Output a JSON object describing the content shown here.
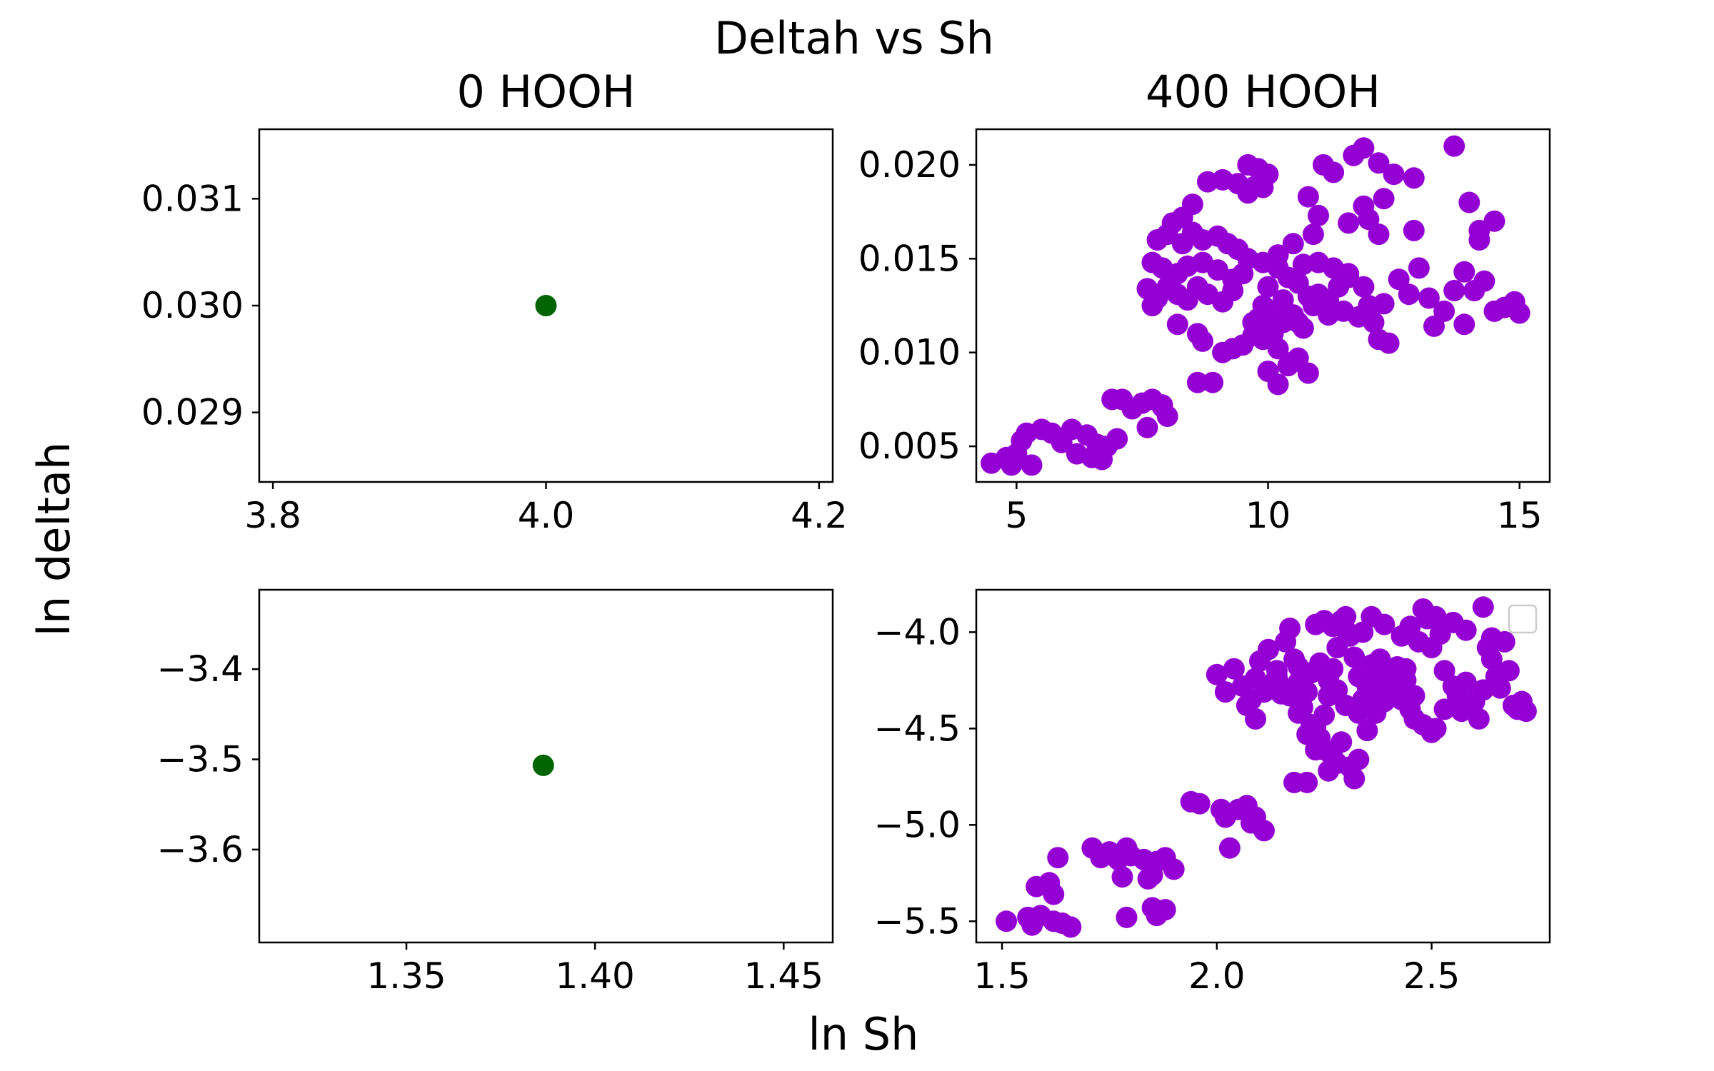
{
  "figure": {
    "suptitle": "Deltah vs Sh",
    "supxlabel": "ln Sh",
    "supylabel": "ln deltah"
  },
  "colors": {
    "control": "#006400",
    "treatment": "#9400D3",
    "axes": "#000000",
    "legend_border": "#cccccc"
  },
  "chart_data": [
    {
      "type": "scatter",
      "panel": "top-left",
      "title": "0 HOOH",
      "color": "#006400",
      "xlim": [
        3.79,
        4.21
      ],
      "ylim": [
        0.02835,
        0.03165
      ],
      "xticks": [
        3.8,
        4.0,
        4.2
      ],
      "xtick_labels": [
        "3.8",
        "4.0",
        "4.2"
      ],
      "yticks": [
        0.029,
        0.03,
        0.031
      ],
      "ytick_labels": [
        "0.029",
        "0.030",
        "0.031"
      ],
      "points": [
        [
          4.0,
          0.03
        ]
      ]
    },
    {
      "type": "scatter",
      "panel": "top-right",
      "title": "400 HOOH",
      "color": "#9400D3",
      "xlim": [
        4.2,
        15.6
      ],
      "ylim": [
        0.0031,
        0.0219
      ],
      "xticks": [
        5,
        10,
        15
      ],
      "xtick_labels": [
        "5",
        "10",
        "15"
      ],
      "yticks": [
        0.005,
        0.01,
        0.015,
        0.02
      ],
      "ytick_labels": [
        "0.005",
        "0.010",
        "0.015",
        "0.020"
      ],
      "points": [
        [
          4.5,
          0.0041
        ],
        [
          4.8,
          0.0044
        ],
        [
          5.0,
          0.0046
        ],
        [
          5.1,
          0.0053
        ],
        [
          5.2,
          0.0057
        ],
        [
          4.9,
          0.004
        ],
        [
          5.3,
          0.004
        ],
        [
          5.5,
          0.0059
        ],
        [
          5.7,
          0.0057
        ],
        [
          5.9,
          0.0052
        ],
        [
          6.1,
          0.0059
        ],
        [
          6.2,
          0.0046
        ],
        [
          6.4,
          0.0056
        ],
        [
          6.5,
          0.0044
        ],
        [
          6.6,
          0.0051
        ],
        [
          6.7,
          0.0043
        ],
        [
          6.8,
          0.005
        ],
        [
          7.0,
          0.0054
        ],
        [
          6.9,
          0.0075
        ],
        [
          7.1,
          0.0075
        ],
        [
          7.3,
          0.007
        ],
        [
          7.5,
          0.0073
        ],
        [
          7.7,
          0.0075
        ],
        [
          7.9,
          0.0071
        ],
        [
          8.0,
          0.0066
        ],
        [
          7.6,
          0.006
        ],
        [
          7.9,
          0.0072
        ],
        [
          8.6,
          0.0084
        ],
        [
          8.9,
          0.0084
        ],
        [
          9.1,
          0.01
        ],
        [
          9.3,
          0.0102
        ],
        [
          9.5,
          0.0104
        ],
        [
          9.7,
          0.0109
        ],
        [
          9.9,
          0.0107
        ],
        [
          10.1,
          0.011
        ],
        [
          10.2,
          0.0102
        ],
        [
          10.4,
          0.0093
        ],
        [
          10.6,
          0.0097
        ],
        [
          10.8,
          0.0089
        ],
        [
          10.0,
          0.009
        ],
        [
          10.2,
          0.0083
        ],
        [
          10.5,
          0.0095
        ],
        [
          9.8,
          0.0118
        ],
        [
          10.0,
          0.0112
        ],
        [
          10.3,
          0.0116
        ],
        [
          10.5,
          0.012
        ],
        [
          10.7,
          0.0113
        ],
        [
          10.9,
          0.0125
        ],
        [
          11.0,
          0.0131
        ],
        [
          11.2,
          0.0128
        ],
        [
          11.4,
          0.0135
        ],
        [
          11.6,
          0.014
        ],
        [
          11.8,
          0.0119
        ],
        [
          12.0,
          0.0125
        ],
        [
          12.2,
          0.0107
        ],
        [
          12.4,
          0.0105
        ],
        [
          12.1,
          0.0116
        ],
        [
          11.5,
          0.0122
        ],
        [
          11.2,
          0.012
        ],
        [
          10.8,
          0.013
        ],
        [
          10.6,
          0.0137
        ],
        [
          10.4,
          0.014
        ],
        [
          10.2,
          0.0145
        ],
        [
          10.0,
          0.0135
        ],
        [
          10.3,
          0.0128
        ],
        [
          10.7,
          0.0147
        ],
        [
          11.0,
          0.0148
        ],
        [
          11.3,
          0.0145
        ],
        [
          11.6,
          0.0142
        ],
        [
          11.9,
          0.0135
        ],
        [
          12.3,
          0.0126
        ],
        [
          12.6,
          0.0139
        ],
        [
          12.8,
          0.0131
        ],
        [
          13.0,
          0.0145
        ],
        [
          13.2,
          0.0129
        ],
        [
          13.5,
          0.0122
        ],
        [
          13.7,
          0.0133
        ],
        [
          13.9,
          0.0143
        ],
        [
          14.1,
          0.0133
        ],
        [
          14.3,
          0.0138
        ],
        [
          14.5,
          0.0122
        ],
        [
          14.7,
          0.0124
        ],
        [
          14.9,
          0.0127
        ],
        [
          15.0,
          0.0121
        ],
        [
          13.3,
          0.0114
        ],
        [
          13.9,
          0.0115
        ],
        [
          14.0,
          0.018
        ],
        [
          14.2,
          0.0165
        ],
        [
          14.5,
          0.017
        ],
        [
          13.7,
          0.021
        ],
        [
          12.9,
          0.0193
        ],
        [
          12.5,
          0.0195
        ],
        [
          12.2,
          0.0201
        ],
        [
          11.9,
          0.0209
        ],
        [
          11.7,
          0.0205
        ],
        [
          11.3,
          0.0196
        ],
        [
          11.1,
          0.02
        ],
        [
          10.8,
          0.0183
        ],
        [
          11.0,
          0.0173
        ],
        [
          11.6,
          0.0169
        ],
        [
          11.9,
          0.0178
        ],
        [
          12.2,
          0.0163
        ],
        [
          12.3,
          0.0182
        ],
        [
          12.0,
          0.0171
        ],
        [
          12.9,
          0.0165
        ],
        [
          14.2,
          0.016
        ],
        [
          9.6,
          0.02
        ],
        [
          9.8,
          0.0198
        ],
        [
          9.9,
          0.0193
        ],
        [
          10.0,
          0.0195
        ],
        [
          9.7,
          0.0188
        ],
        [
          9.4,
          0.019
        ],
        [
          9.1,
          0.0192
        ],
        [
          8.8,
          0.0191
        ],
        [
          9.6,
          0.0185
        ],
        [
          9.9,
          0.0188
        ],
        [
          8.5,
          0.0179
        ],
        [
          8.3,
          0.0172
        ],
        [
          8.1,
          0.0169
        ],
        [
          8.0,
          0.0163
        ],
        [
          7.8,
          0.016
        ],
        [
          8.3,
          0.0158
        ],
        [
          8.5,
          0.0164
        ],
        [
          8.7,
          0.016
        ],
        [
          9.0,
          0.0162
        ],
        [
          9.2,
          0.0158
        ],
        [
          9.4,
          0.0155
        ],
        [
          9.6,
          0.015
        ],
        [
          9.9,
          0.0148
        ],
        [
          10.2,
          0.0152
        ],
        [
          10.5,
          0.0158
        ],
        [
          10.9,
          0.0163
        ],
        [
          7.7,
          0.0148
        ],
        [
          7.9,
          0.0145
        ],
        [
          8.2,
          0.0142
        ],
        [
          8.4,
          0.0146
        ],
        [
          8.7,
          0.0148
        ],
        [
          9.0,
          0.0144
        ],
        [
          9.3,
          0.0139
        ],
        [
          9.5,
          0.0142
        ],
        [
          7.6,
          0.0134
        ],
        [
          7.8,
          0.0129
        ],
        [
          8.0,
          0.0135
        ],
        [
          8.2,
          0.0131
        ],
        [
          8.4,
          0.0128
        ],
        [
          8.6,
          0.0135
        ],
        [
          8.8,
          0.0131
        ],
        [
          9.1,
          0.0127
        ],
        [
          9.3,
          0.0133
        ],
        [
          8.2,
          0.0115
        ],
        [
          8.6,
          0.011
        ],
        [
          8.7,
          0.0106
        ],
        [
          9.7,
          0.0116
        ],
        [
          9.9,
          0.0125
        ],
        [
          10.1,
          0.0119
        ],
        [
          10.3,
          0.0123
        ],
        [
          10.6,
          0.0116
        ],
        [
          7.7,
          0.0125
        ]
      ]
    },
    {
      "type": "scatter",
      "panel": "bottom-left",
      "color": "#006400",
      "xlim": [
        1.311,
        1.463
      ],
      "ylim": [
        -3.703,
        -3.312
      ],
      "xticks": [
        1.35,
        1.4,
        1.45
      ],
      "xtick_labels": [
        "1.35",
        "1.40",
        "1.45"
      ],
      "yticks": [
        -3.4,
        -3.5,
        -3.6
      ],
      "ytick_labels": [
        "−3.4",
        "−3.5",
        "−3.6"
      ],
      "points": [
        [
          1.3863,
          -3.5066
        ]
      ]
    },
    {
      "type": "scatter",
      "panel": "bottom-right",
      "color": "#9400D3",
      "xlim": [
        1.44,
        2.775
      ],
      "ylim": [
        -5.61,
        -3.78
      ],
      "xticks": [
        1.5,
        2.0,
        2.5
      ],
      "xtick_labels": [
        "1.5",
        "2.0",
        "2.5"
      ],
      "yticks": [
        -4.0,
        -4.5,
        -5.0,
        -5.5
      ],
      "ytick_labels": [
        "−4.0",
        "−4.5",
        "−5.0",
        "−5.5"
      ],
      "legend": "top-right",
      "points": [
        [
          1.51,
          -5.5
        ],
        [
          1.56,
          -5.48
        ],
        [
          1.57,
          -5.52
        ],
        [
          1.59,
          -5.47
        ],
        [
          1.62,
          -5.5
        ],
        [
          1.64,
          -5.51
        ],
        [
          1.66,
          -5.53
        ],
        [
          1.58,
          -5.32
        ],
        [
          1.61,
          -5.3
        ],
        [
          1.62,
          -5.36
        ],
        [
          1.63,
          -5.17
        ],
        [
          1.71,
          -5.12
        ],
        [
          1.73,
          -5.17
        ],
        [
          1.75,
          -5.14
        ],
        [
          1.77,
          -5.18
        ],
        [
          1.79,
          -5.12
        ],
        [
          1.8,
          -5.16
        ],
        [
          1.83,
          -5.18
        ],
        [
          1.78,
          -5.27
        ],
        [
          1.86,
          -5.19
        ],
        [
          1.88,
          -5.17
        ],
        [
          1.9,
          -5.23
        ],
        [
          1.85,
          -5.26
        ],
        [
          1.84,
          -5.28
        ],
        [
          1.79,
          -5.48
        ],
        [
          1.85,
          -5.43
        ],
        [
          1.86,
          -5.47
        ],
        [
          1.88,
          -5.44
        ],
        [
          1.94,
          -4.88
        ],
        [
          1.96,
          -4.89
        ],
        [
          2.01,
          -4.92
        ],
        [
          2.02,
          -4.96
        ],
        [
          2.05,
          -4.92
        ],
        [
          2.07,
          -4.9
        ],
        [
          2.09,
          -4.96
        ],
        [
          2.11,
          -5.03
        ],
        [
          2.08,
          -4.99
        ],
        [
          2.03,
          -5.12
        ],
        [
          2.0,
          -4.22
        ],
        [
          2.02,
          -4.31
        ],
        [
          2.04,
          -4.19
        ],
        [
          2.06,
          -4.28
        ],
        [
          2.08,
          -4.35
        ],
        [
          2.09,
          -4.24
        ],
        [
          2.1,
          -4.15
        ],
        [
          2.12,
          -4.09
        ],
        [
          2.14,
          -4.23
        ],
        [
          2.15,
          -4.32
        ],
        [
          2.16,
          -4.05
        ],
        [
          2.17,
          -3.98
        ],
        [
          2.18,
          -4.14
        ],
        [
          2.19,
          -4.26
        ],
        [
          2.2,
          -4.39
        ],
        [
          2.21,
          -4.31
        ],
        [
          2.22,
          -4.48
        ],
        [
          2.23,
          -4.61
        ],
        [
          2.24,
          -4.55
        ],
        [
          2.25,
          -4.43
        ],
        [
          2.26,
          -4.33
        ],
        [
          2.27,
          -4.19
        ],
        [
          2.28,
          -4.08
        ],
        [
          2.29,
          -3.94
        ],
        [
          2.3,
          -3.92
        ],
        [
          2.31,
          -4.02
        ],
        [
          2.32,
          -4.13
        ],
        [
          2.33,
          -4.23
        ],
        [
          2.34,
          -4.35
        ],
        [
          2.35,
          -4.28
        ],
        [
          2.36,
          -4.17
        ],
        [
          2.37,
          -4.26
        ],
        [
          2.38,
          -4.31
        ],
        [
          2.39,
          -4.22
        ],
        [
          2.4,
          -4.24
        ],
        [
          2.41,
          -4.27
        ],
        [
          2.42,
          -4.18
        ],
        [
          2.44,
          -4.25
        ],
        [
          2.45,
          -4.4
        ],
        [
          2.46,
          -4.33
        ],
        [
          2.47,
          -4.05
        ],
        [
          2.49,
          -3.93
        ],
        [
          2.5,
          -4.08
        ],
        [
          2.52,
          -4.01
        ],
        [
          2.53,
          -4.2
        ],
        [
          2.55,
          -4.28
        ],
        [
          2.56,
          -4.33
        ],
        [
          2.57,
          -4.41
        ],
        [
          2.58,
          -4.26
        ],
        [
          2.6,
          -4.36
        ],
        [
          2.61,
          -4.45
        ],
        [
          2.62,
          -4.3
        ],
        [
          2.63,
          -4.08
        ],
        [
          2.64,
          -4.14
        ],
        [
          2.65,
          -4.23
        ],
        [
          2.66,
          -4.29
        ],
        [
          2.67,
          -4.05
        ],
        [
          2.68,
          -4.2
        ],
        [
          2.69,
          -4.38
        ],
        [
          2.7,
          -4.4
        ],
        [
          2.71,
          -4.36
        ],
        [
          2.72,
          -4.41
        ],
        [
          2.07,
          -4.38
        ],
        [
          2.09,
          -4.45
        ],
        [
          2.11,
          -4.31
        ],
        [
          2.13,
          -4.27
        ],
        [
          2.17,
          -4.33
        ],
        [
          2.19,
          -4.42
        ],
        [
          2.21,
          -4.53
        ],
        [
          2.23,
          -4.49
        ],
        [
          2.25,
          -4.61
        ],
        [
          2.27,
          -4.65
        ],
        [
          2.29,
          -4.57
        ],
        [
          2.31,
          -4.7
        ],
        [
          2.32,
          -4.76
        ],
        [
          2.26,
          -4.72
        ],
        [
          2.28,
          -4.68
        ],
        [
          2.18,
          -4.78
        ],
        [
          2.21,
          -4.78
        ],
        [
          2.33,
          -4.66
        ],
        [
          2.35,
          -4.51
        ],
        [
          2.37,
          -4.42
        ],
        [
          2.39,
          -4.36
        ],
        [
          2.41,
          -4.3
        ],
        [
          2.43,
          -4.35
        ],
        [
          2.46,
          -4.45
        ],
        [
          2.48,
          -4.48
        ],
        [
          2.5,
          -4.52
        ],
        [
          2.51,
          -4.5
        ],
        [
          2.53,
          -4.4
        ],
        [
          2.23,
          -3.96
        ],
        [
          2.25,
          -3.94
        ],
        [
          2.27,
          -3.97
        ],
        [
          2.3,
          -3.99
        ],
        [
          2.34,
          -4.0
        ],
        [
          2.36,
          -3.92
        ],
        [
          2.39,
          -3.96
        ],
        [
          2.43,
          -4.02
        ],
        [
          2.45,
          -3.97
        ],
        [
          2.48,
          -3.88
        ],
        [
          2.51,
          -3.92
        ],
        [
          2.55,
          -3.95
        ],
        [
          2.58,
          -3.99
        ],
        [
          2.62,
          -3.87
        ],
        [
          2.64,
          -4.03
        ],
        [
          2.14,
          -4.2
        ],
        [
          2.16,
          -4.29
        ],
        [
          2.19,
          -4.18
        ],
        [
          2.22,
          -4.21
        ],
        [
          2.24,
          -4.16
        ],
        [
          2.26,
          -4.25
        ],
        [
          2.28,
          -4.3
        ],
        [
          2.3,
          -4.38
        ],
        [
          2.33,
          -4.42
        ],
        [
          2.35,
          -4.33
        ],
        [
          2.36,
          -4.2
        ],
        [
          2.38,
          -4.14
        ],
        [
          2.4,
          -4.22
        ],
        [
          2.42,
          -4.3
        ],
        [
          2.44,
          -4.19
        ]
      ]
    }
  ]
}
